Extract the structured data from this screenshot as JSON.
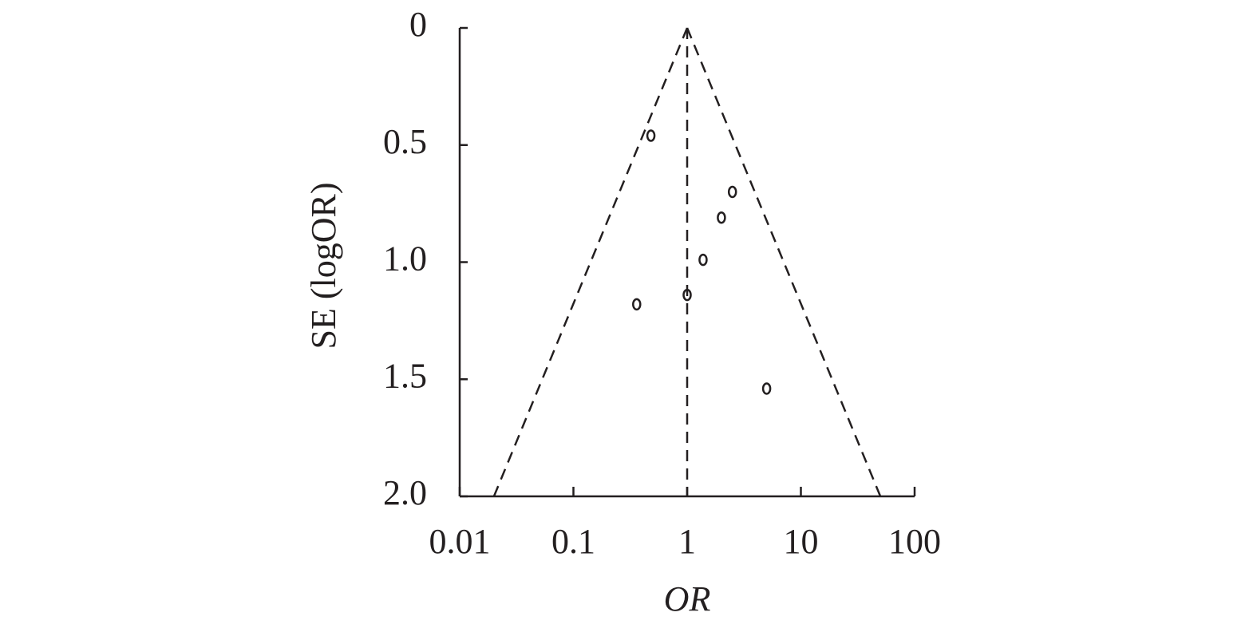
{
  "chart_data": {
    "type": "funnel",
    "x_label": "OR",
    "y_label": "SE (logOR)",
    "x": [
      0.48,
      2.5,
      2.0,
      1.38,
      1.0,
      0.36,
      5.0
    ],
    "values": [
      0.46,
      0.7,
      0.81,
      0.99,
      1.14,
      1.18,
      1.54
    ],
    "xscale": "log",
    "xlim": [
      0.01,
      100
    ],
    "xticks": [
      0.01,
      0.1,
      1,
      10,
      100
    ],
    "ylim": [
      0,
      2
    ],
    "y_inverted": true,
    "yticks": [
      0,
      0.5,
      {
        "value": 1,
        "label": "1.0"
      },
      1.5,
      {
        "value": 2,
        "label": "2.0"
      }
    ],
    "reference_lines": [
      {
        "x": [
          1,
          1
        ],
        "y": [
          0,
          2
        ]
      },
      {
        "x": [
          1,
          0.02
        ],
        "y": [
          0,
          2
        ]
      },
      {
        "x": [
          1,
          50
        ],
        "y": [
          0,
          2
        ]
      }
    ],
    "color": "#231f20"
  }
}
